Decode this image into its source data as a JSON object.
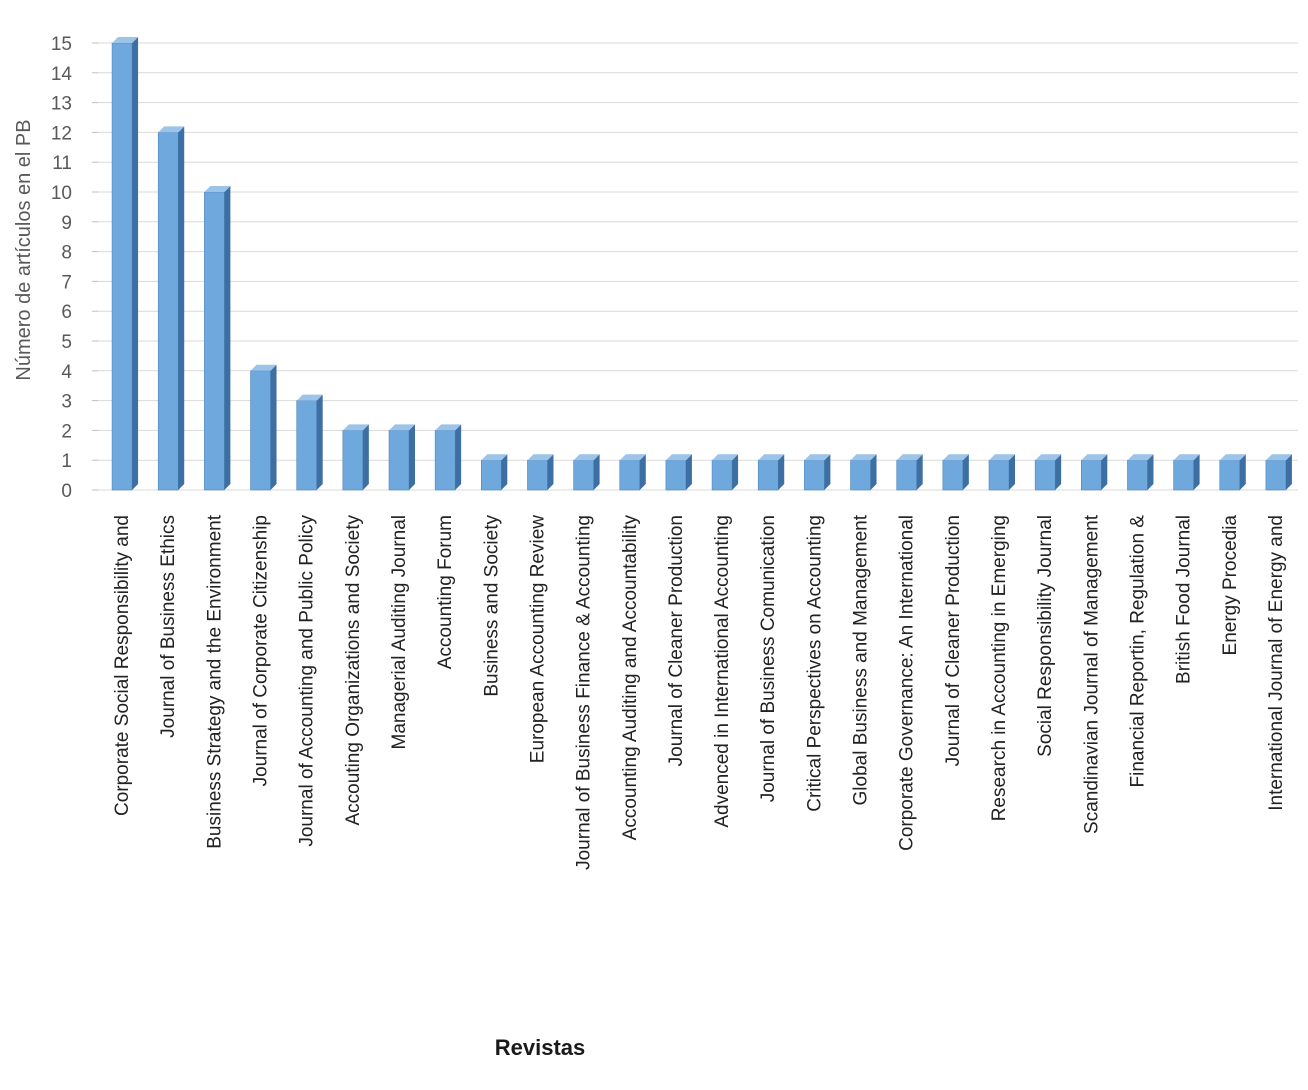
{
  "chart_data": {
    "type": "bar",
    "categories": [
      "Corporate Social Responsibility and",
      "Journal of Business Ethics",
      "Business Strategy and the Environment",
      "Journal of Corporate Citizenship",
      "Journal of Accounting and Public Policy",
      "Accouting Organizations and Society",
      "Managerial Auditing Journal",
      "Accounting Forum",
      "Business and Society",
      "European Accounting Review",
      "Journal of Business Finance & Accounting",
      "Accounting Auditing and Accountability",
      "Journal of Cleaner Production",
      "Advenced in International Accounting",
      "Journal of Business Comunication",
      "Critical Perspectives on Accounting",
      "Global Business and Management",
      "Corporate Governance: An International",
      "Journal of Cleaner Production",
      "Research in Accounting in Emerging",
      "Social Responsibility Journal",
      "Scandinavian Journal of Management",
      "Financial Reportin, Regulation &",
      "British Food Journal",
      "Energy Procedia",
      "International Journal of Energy and"
    ],
    "values": [
      15,
      12,
      10,
      4,
      3,
      2,
      2,
      2,
      1,
      1,
      1,
      1,
      1,
      1,
      1,
      1,
      1,
      1,
      1,
      1,
      1,
      1,
      1,
      1,
      1,
      1
    ],
    "yticks": [
      "0",
      "1",
      "2",
      "3",
      "4",
      "5",
      "6",
      "7",
      "8",
      "9",
      "10",
      "11",
      "12",
      "13",
      "14",
      "15"
    ],
    "ylim": [
      0,
      15
    ],
    "xlabel": "Revistas",
    "ylabel": "Número de artículos en el PB",
    "title": "",
    "grid": true,
    "legend": "none",
    "bar_style": "3d",
    "colors": {
      "bar_front": "#6fa8dc",
      "bar_side": "#3d6fa3",
      "bar_top": "#9cc3e8",
      "grid": "#d9d9d9",
      "tick_text": "#595959",
      "category_text": "#222222"
    }
  }
}
